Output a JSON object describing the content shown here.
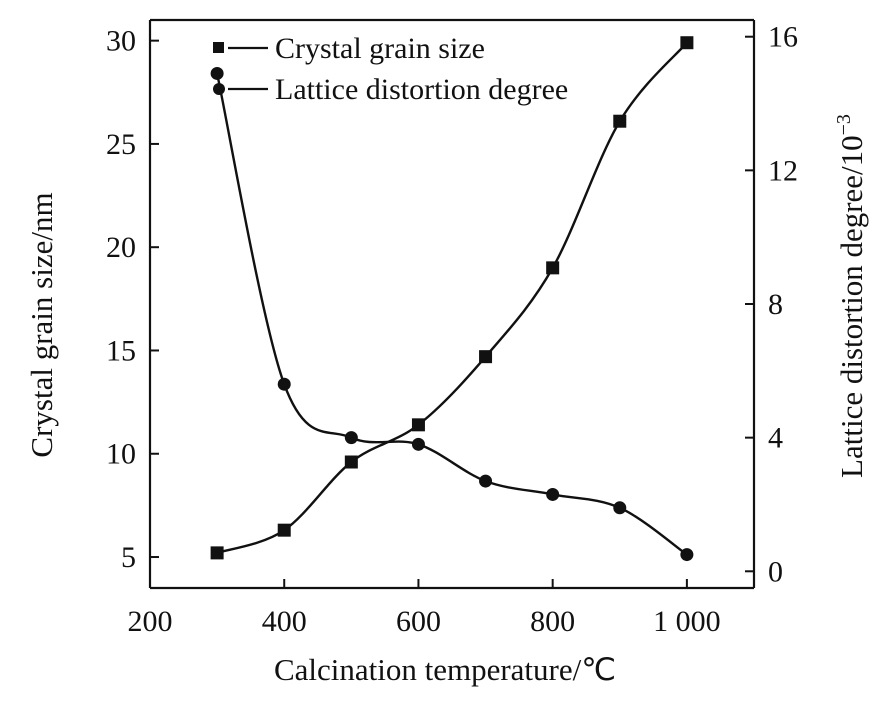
{
  "chart_data": {
    "type": "line",
    "title": "",
    "xlabel": "Calcination temperature/℃",
    "ylabel": "Crystal grain size/nm",
    "y2label": "Lattice distortion degree/10",
    "y2label_exponent": "−3",
    "xlim": [
      200,
      1100
    ],
    "ylim": [
      3.5,
      31
    ],
    "y2lim": [
      -0.5,
      16.5
    ],
    "xticks": [
      200,
      400,
      600,
      800,
      1000
    ],
    "xtick_labels": [
      "200",
      "400",
      "600",
      "800",
      "1 000"
    ],
    "yticks": [
      5,
      10,
      15,
      20,
      25,
      30
    ],
    "ytick_labels": [
      "5",
      "10",
      "15",
      "20",
      "25",
      "30"
    ],
    "y2ticks": [
      0,
      4,
      8,
      12,
      16
    ],
    "y2tick_labels": [
      "0",
      "4",
      "8",
      "12",
      "16"
    ],
    "grid": false,
    "legend_position": "top-center",
    "series": [
      {
        "name": "Crystal grain size",
        "axis": "left",
        "marker": "square",
        "x": [
          300,
          400,
          500,
          600,
          700,
          800,
          900,
          1000
        ],
        "y": [
          5.2,
          6.3,
          9.6,
          11.4,
          14.7,
          19.0,
          26.1,
          29.9
        ]
      },
      {
        "name": "Lattice distortion degree",
        "axis": "right",
        "marker": "circle",
        "x": [
          300,
          400,
          500,
          600,
          700,
          800,
          900,
          1000
        ],
        "y": [
          14.9,
          5.6,
          4.0,
          3.8,
          2.7,
          2.3,
          1.9,
          0.5
        ]
      }
    ],
    "colors": {
      "ink": "#111111",
      "background": "#ffffff"
    }
  }
}
